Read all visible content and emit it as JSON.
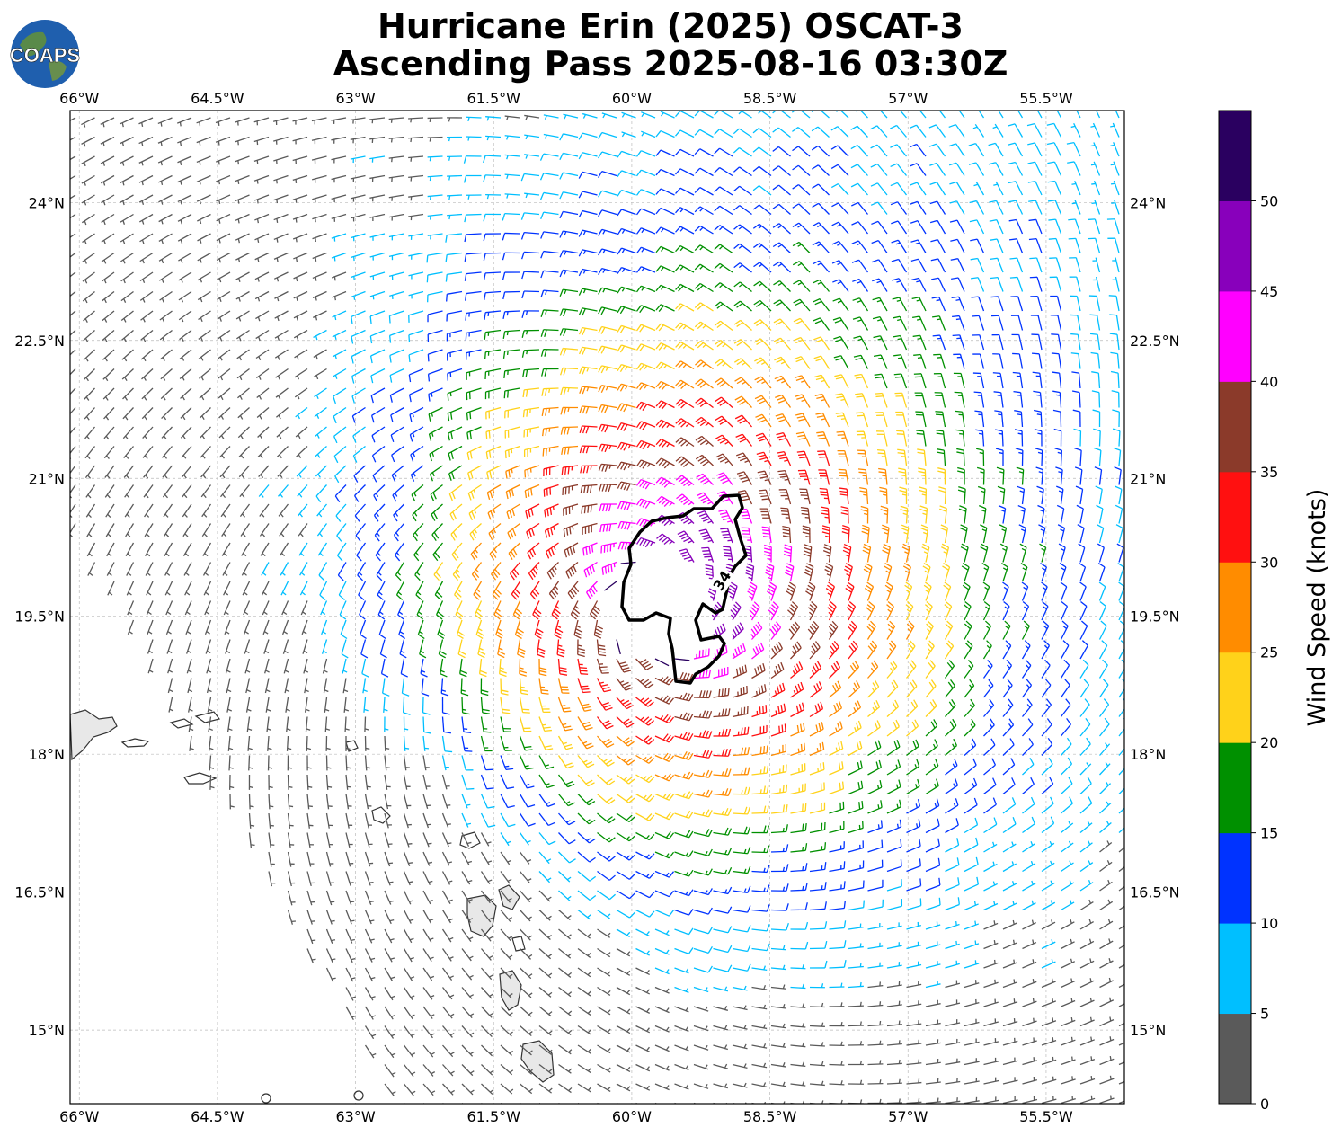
{
  "title": {
    "line1": "Hurricane Erin (2025) OSCAT-3",
    "line2": "Ascending Pass 2025-08-16 03:30Z"
  },
  "logo": {
    "text": "COAPS",
    "icon": "globe-logo-icon"
  },
  "map": {
    "lon_range": [
      -66.1,
      -54.65
    ],
    "lat_range": [
      14.2,
      25.0
    ],
    "lon_ticks": [
      -66,
      -64.5,
      -63,
      -61.5,
      -60,
      -58.5,
      -57,
      -55.5
    ],
    "lon_tick_labels": [
      "66°W",
      "64.5°W",
      "63°W",
      "61.5°W",
      "60°W",
      "58.5°W",
      "57°W",
      "55.5°W"
    ],
    "lat_ticks": [
      15,
      16.5,
      18,
      19.5,
      21,
      22.5,
      24
    ],
    "lat_tick_labels": [
      "15°N",
      "16.5°N",
      "18°N",
      "19.5°N",
      "21°N",
      "22.5°N",
      "24°N"
    ],
    "gridlines": true,
    "storm_center": {
      "lon": -59.7,
      "lat": 19.6
    },
    "contour_label": "34"
  },
  "colorbar": {
    "title": "Wind Speed (knots)",
    "ticks": [
      "0",
      "5",
      "10",
      "15",
      "20",
      "25",
      "30",
      "35",
      "40",
      "45",
      "50"
    ],
    "bins": [
      {
        "min": 0,
        "max": 5,
        "color": "#5a5a5a"
      },
      {
        "min": 5,
        "max": 10,
        "color": "#00bfff"
      },
      {
        "min": 10,
        "max": 15,
        "color": "#0033ff"
      },
      {
        "min": 15,
        "max": 20,
        "color": "#009000"
      },
      {
        "min": 20,
        "max": 25,
        "color": "#ffd21a"
      },
      {
        "min": 25,
        "max": 30,
        "color": "#ff8c00"
      },
      {
        "min": 30,
        "max": 35,
        "color": "#ff1010"
      },
      {
        "min": 35,
        "max": 40,
        "color": "#8b3a2a"
      },
      {
        "min": 40,
        "max": 45,
        "color": "#ff00ff"
      },
      {
        "min": 45,
        "max": 50,
        "color": "#8800bb"
      },
      {
        "min": 50,
        "max": 55,
        "color": "#2a0060"
      }
    ]
  }
}
